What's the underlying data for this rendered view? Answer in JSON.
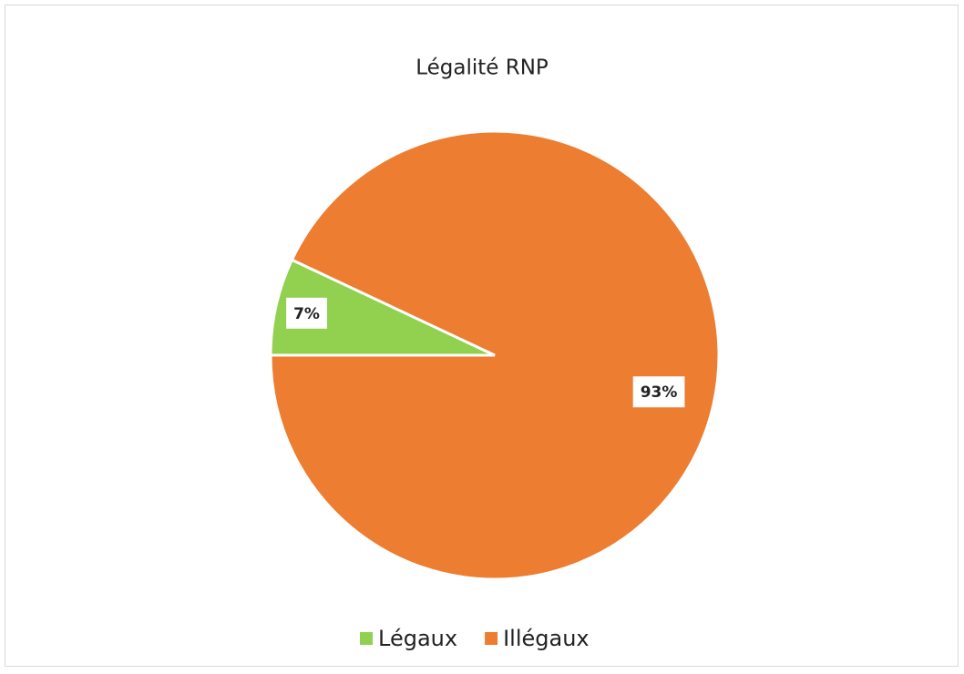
{
  "chart_data": {
    "type": "pie",
    "title": "Légalité RNP",
    "categories": [
      "Légaux",
      "Illégaux"
    ],
    "values": [
      7,
      93
    ],
    "value_labels": [
      "7%",
      "93%"
    ],
    "colors": [
      "#92d050",
      "#ed7d31"
    ],
    "legend": "bottom"
  }
}
